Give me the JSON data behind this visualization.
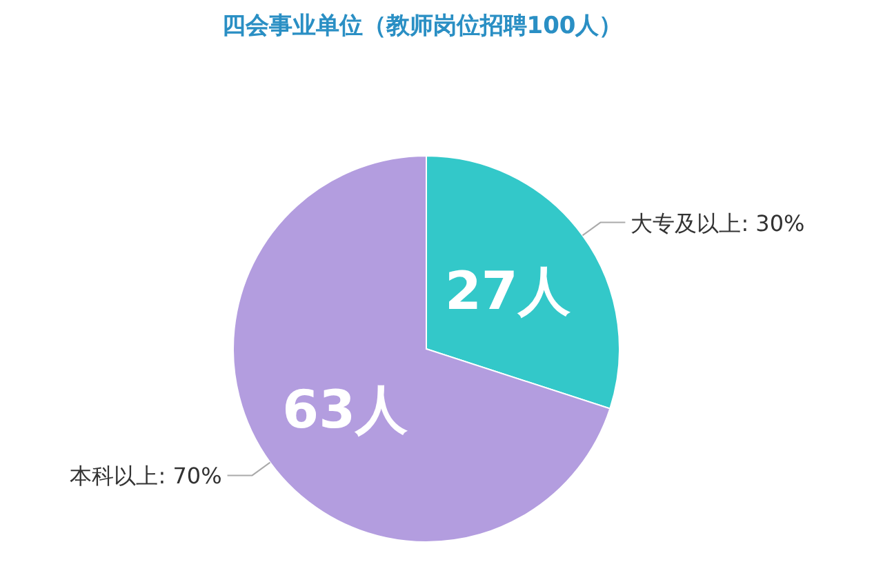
{
  "chart_data": {
    "type": "pie",
    "title": "四会事业单位（教师岗位招聘100人）",
    "categories": [
      "大专及以上: 30%",
      "本科以上: 70%"
    ],
    "values": [
      27,
      63
    ],
    "colors": [
      "#33c8c9",
      "#b39ddf"
    ],
    "value_labels": [
      "27人",
      "63人"
    ]
  }
}
